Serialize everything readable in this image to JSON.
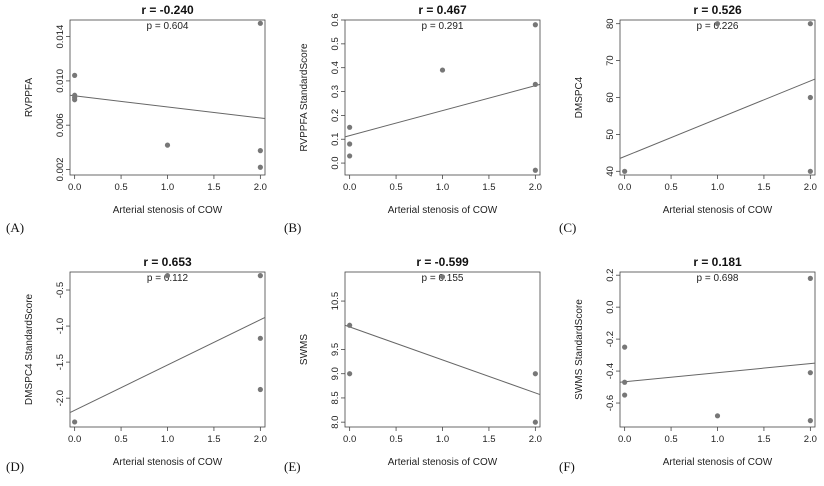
{
  "chart_data": [
    {
      "panel": "(A)",
      "type": "scatter",
      "title": "r = -0.240",
      "subtitle": "p = 0.604",
      "xlabel": "Arterial stenosis of COW",
      "ylabel": "RVPPFA",
      "xlim": [
        -0.05,
        2.05
      ],
      "ylim": [
        0.0015,
        0.0155
      ],
      "xticks": [
        "0.0",
        "0.5",
        "1.0",
        "1.5",
        "2.0"
      ],
      "yticks": [
        "0.002",
        "0.006",
        "0.010",
        "0.014"
      ],
      "points": [
        [
          0,
          0.0105
        ],
        [
          0,
          0.0087
        ],
        [
          0,
          0.0085
        ],
        [
          0,
          0.0083
        ],
        [
          1,
          0.0042
        ],
        [
          2,
          0.0152
        ],
        [
          2,
          0.0037
        ],
        [
          2,
          0.0022
        ]
      ],
      "fit": [
        [
          -0.05,
          0.0087
        ],
        [
          2.05,
          0.0066
        ]
      ]
    },
    {
      "panel": "(B)",
      "type": "scatter",
      "title": "r = 0.467",
      "subtitle": "p = 0.291",
      "xlabel": "Arterial stenosis of COW",
      "ylabel": "RVPPFA StandardScore",
      "xlim": [
        -0.05,
        2.05
      ],
      "ylim": [
        -0.05,
        0.6
      ],
      "xticks": [
        "0.0",
        "0.5",
        "1.0",
        "1.5",
        "2.0"
      ],
      "yticks": [
        "0.0",
        "0.1",
        "0.2",
        "0.3",
        "0.4",
        "0.5",
        "0.6"
      ],
      "points": [
        [
          0,
          0.15
        ],
        [
          0,
          0.08
        ],
        [
          0,
          0.03
        ],
        [
          1,
          0.39
        ],
        [
          2,
          0.58
        ],
        [
          2,
          0.33
        ],
        [
          2,
          -0.03
        ]
      ],
      "fit": [
        [
          -0.05,
          0.11
        ],
        [
          2.05,
          0.33
        ]
      ]
    },
    {
      "panel": "(C)",
      "type": "scatter",
      "title": "r = 0.526",
      "subtitle": "p = 0.226",
      "xlabel": "Arterial stenosis of COW",
      "ylabel": "DMSPC4",
      "xlim": [
        -0.05,
        2.05
      ],
      "ylim": [
        39,
        81
      ],
      "xticks": [
        "0.0",
        "0.5",
        "1.0",
        "1.5",
        "2.0"
      ],
      "yticks": [
        "40",
        "50",
        "60",
        "70",
        "80"
      ],
      "points": [
        [
          0,
          40
        ],
        [
          1,
          80
        ],
        [
          2,
          80
        ],
        [
          2,
          60
        ],
        [
          2,
          40
        ]
      ],
      "fit": [
        [
          -0.05,
          43.5
        ],
        [
          2.05,
          65
        ]
      ]
    },
    {
      "panel": "(D)",
      "type": "scatter",
      "title": "r = 0.653",
      "subtitle": "p = 0.112",
      "xlabel": "Arterial stenosis of COW",
      "ylabel": "DMSPC4 StandardScore",
      "xlim": [
        -0.05,
        2.05
      ],
      "ylim": [
        -2.4,
        -0.25
      ],
      "xticks": [
        "0.0",
        "0.5",
        "1.0",
        "1.5",
        "2.0"
      ],
      "yticks": [
        "-2.0",
        "-1.5",
        "-1.0",
        "-0.5"
      ],
      "points": [
        [
          0,
          -2.33
        ],
        [
          1,
          -0.3
        ],
        [
          2,
          -0.3
        ],
        [
          2,
          -1.17
        ],
        [
          2,
          -1.88
        ]
      ],
      "fit": [
        [
          -0.05,
          -2.2
        ],
        [
          2.05,
          -0.88
        ]
      ]
    },
    {
      "panel": "(E)",
      "type": "scatter",
      "title": "r = -0.599",
      "subtitle": "p = 0.155",
      "xlabel": "Arterial stenosis of COW",
      "ylabel": "SWMS",
      "xlim": [
        -0.05,
        2.05
      ],
      "ylim": [
        7.9,
        11.1
      ],
      "xticks": [
        "0.0",
        "0.5",
        "1.0",
        "1.5",
        "2.0"
      ],
      "yticks": [
        "8.0",
        "8.5",
        "9.0",
        "9.5",
        "10.5"
      ],
      "points": [
        [
          0,
          10
        ],
        [
          0,
          9
        ],
        [
          1,
          11
        ],
        [
          2,
          9
        ],
        [
          2,
          8
        ]
      ],
      "fit": [
        [
          -0.05,
          10.0
        ],
        [
          2.05,
          8.57
        ]
      ]
    },
    {
      "panel": "(F)",
      "type": "scatter",
      "title": "r = 0.181",
      "subtitle": "p = 0.698",
      "xlabel": "Arterial stenosis of COW",
      "ylabel": "SWMS StandardScore",
      "xlim": [
        -0.05,
        2.05
      ],
      "ylim": [
        -0.75,
        0.22
      ],
      "xticks": [
        "0.0",
        "0.5",
        "1.0",
        "1.5",
        "2.0"
      ],
      "yticks": [
        "-0.6",
        "-0.4",
        "-0.2",
        "0.0",
        "0.2"
      ],
      "points": [
        [
          0,
          -0.25
        ],
        [
          0,
          -0.47
        ],
        [
          0,
          -0.55
        ],
        [
          1,
          -0.68
        ],
        [
          2,
          0.18
        ],
        [
          2,
          -0.41
        ],
        [
          2,
          -0.71
        ]
      ],
      "fit": [
        [
          -0.05,
          -0.47
        ],
        [
          2.05,
          -0.35
        ]
      ]
    }
  ]
}
